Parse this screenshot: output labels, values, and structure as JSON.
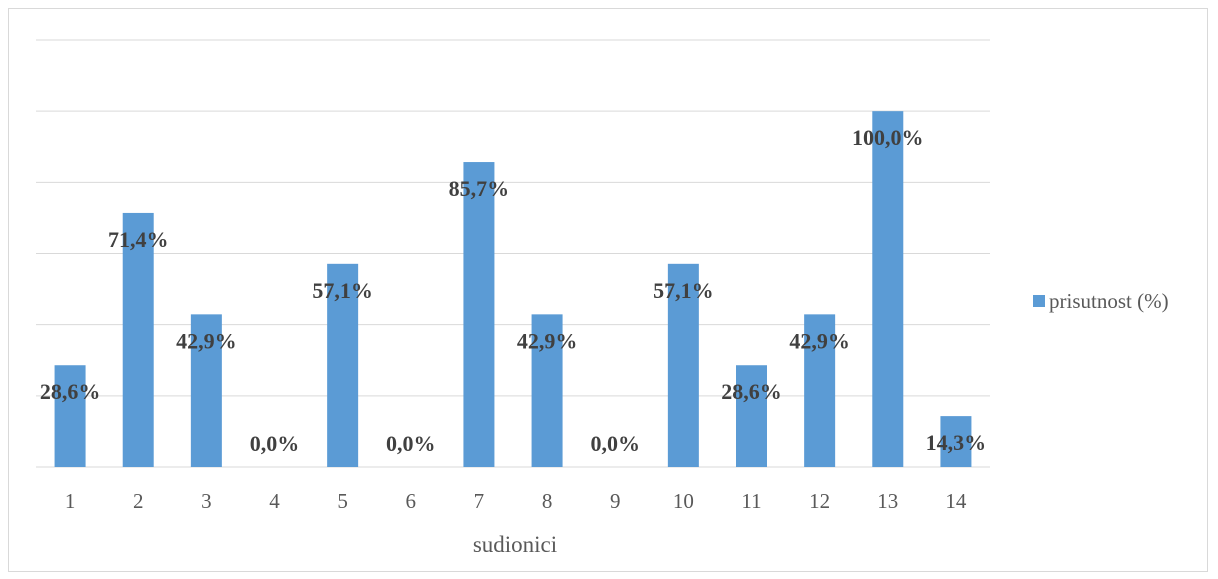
{
  "chart_data": {
    "type": "bar",
    "categories": [
      "1",
      "2",
      "3",
      "4",
      "5",
      "6",
      "7",
      "8",
      "9",
      "10",
      "11",
      "12",
      "13",
      "14"
    ],
    "series": [
      {
        "name": "prisutnost (%)",
        "values": [
          28.6,
          71.4,
          42.9,
          0.0,
          57.1,
          0.0,
          85.7,
          42.9,
          0.0,
          57.1,
          28.6,
          42.9,
          100.0,
          14.3
        ],
        "labels": [
          "28,6%",
          "71,4%",
          "42,9%",
          "0,0%",
          "57,1%",
          "0,0%",
          "85,7%",
          "42,9%",
          "0,0%",
          "57,1%",
          "28,6%",
          "42,9%",
          "100,0%",
          "14,3%"
        ]
      }
    ],
    "xlabel": "sudionici",
    "ylabel": "",
    "ylim": [
      0,
      120
    ],
    "grid": true,
    "legend": "right",
    "colors": {
      "bar": "#5b9bd5",
      "grid": "#d9d9d9",
      "text": "#595959",
      "label": "#404040"
    }
  }
}
